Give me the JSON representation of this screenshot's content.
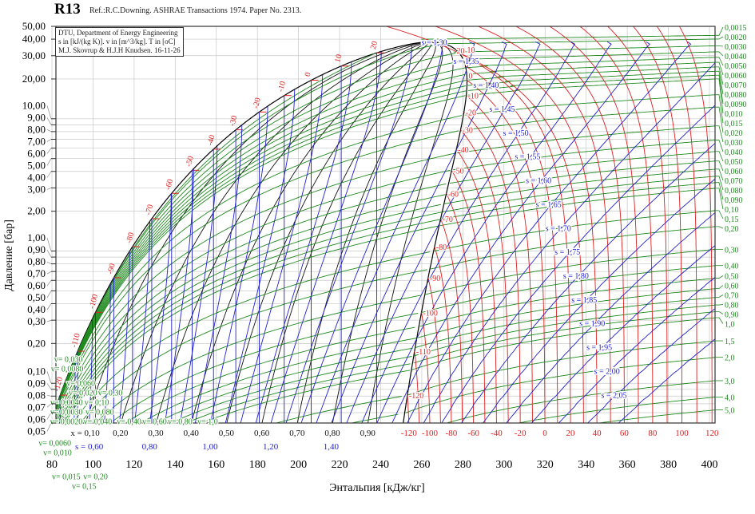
{
  "chart_data": {
    "type": "line",
    "title": "R13",
    "reference": "Ref.:R.C.Downing. ASHRAE Transactions 1974. Paper No. 2313.",
    "info_box": [
      "DTU, Department of Energy Engineering",
      "s in [kJ/(kg K)]. v in [m^3/kg]. T in [oC]",
      "M.J. Skovrup & H.J.H Knudsen. 16-11-26"
    ],
    "xlabel": "Энтальпия  [кДж/кг]",
    "ylabel": "Давление  [бар]",
    "xlim": [
      80,
      400
    ],
    "ylim": [
      0.05,
      50
    ],
    "yscale": "log",
    "grid": true,
    "critical_point": {
      "h": 263,
      "p": 38.4,
      "T": 28.9
    },
    "x_ticks": [
      {
        "value": 80,
        "label": "80"
      },
      {
        "value": 100,
        "label": "100"
      },
      {
        "value": 120,
        "label": "120"
      },
      {
        "value": 140,
        "label": "140"
      },
      {
        "value": 160,
        "label": "160"
      },
      {
        "value": 180,
        "label": "180"
      },
      {
        "value": 200,
        "label": "200"
      },
      {
        "value": 220,
        "label": "220"
      },
      {
        "value": 240,
        "label": "240"
      },
      {
        "value": 260,
        "label": "260"
      },
      {
        "value": 280,
        "label": "280"
      },
      {
        "value": 300,
        "label": "300"
      },
      {
        "value": 320,
        "label": "320"
      },
      {
        "value": 340,
        "label": "340"
      },
      {
        "value": 360,
        "label": "360"
      },
      {
        "value": 380,
        "label": "380"
      },
      {
        "value": 400,
        "label": "400"
      }
    ],
    "y_ticks": [
      {
        "value": 50,
        "label": "50,00"
      },
      {
        "value": 40,
        "label": "40,00"
      },
      {
        "value": 30,
        "label": "30,00"
      },
      {
        "value": 20,
        "label": "20,00"
      },
      {
        "value": 10,
        "label": "10,00"
      },
      {
        "value": 9,
        "label": "9,00"
      },
      {
        "value": 8,
        "label": "8,00"
      },
      {
        "value": 7,
        "label": "7,00"
      },
      {
        "value": 6,
        "label": "6,00"
      },
      {
        "value": 5,
        "label": "5,00"
      },
      {
        "value": 4,
        "label": "4,00"
      },
      {
        "value": 3,
        "label": "3,00"
      },
      {
        "value": 2,
        "label": "2,00"
      },
      {
        "value": 1,
        "label": "1,00"
      },
      {
        "value": 0.9,
        "label": "0,90"
      },
      {
        "value": 0.8,
        "label": "0,80"
      },
      {
        "value": 0.7,
        "label": "0,70"
      },
      {
        "value": 0.6,
        "label": "0,60"
      },
      {
        "value": 0.5,
        "label": "0,50"
      },
      {
        "value": 0.4,
        "label": "0,40"
      },
      {
        "value": 0.3,
        "label": "0,30"
      },
      {
        "value": 0.2,
        "label": "0,20"
      },
      {
        "value": 0.1,
        "label": "0,10"
      },
      {
        "value": 0.09,
        "label": "0,09"
      },
      {
        "value": 0.08,
        "label": "0,08"
      },
      {
        "value": 0.07,
        "label": "0,07"
      },
      {
        "value": 0.06,
        "label": "0,06"
      },
      {
        "value": 0.05,
        "label": "0,05"
      }
    ],
    "isotherms_T": [
      -120,
      -110,
      -100,
      -90,
      -80,
      -70,
      -60,
      -50,
      -40,
      -30,
      -20,
      -10,
      0,
      10,
      20,
      30,
      40,
      50,
      60,
      70,
      80,
      90,
      100,
      110,
      120
    ],
    "saturation_T_labels": [
      {
        "T": -120,
        "label": "-120"
      },
      {
        "T": -110,
        "label": "-110"
      },
      {
        "T": -100,
        "label": "-100"
      },
      {
        "T": -90,
        "label": "-90"
      },
      {
        "T": -80,
        "label": "-80"
      },
      {
        "T": -70,
        "label": "-70"
      },
      {
        "T": -60,
        "label": "-60"
      },
      {
        "T": -50,
        "label": "-50"
      },
      {
        "T": -40,
        "label": "-40"
      },
      {
        "T": -30,
        "label": "-30"
      },
      {
        "T": -20,
        "label": "-20"
      },
      {
        "T": -10,
        "label": "-10"
      },
      {
        "T": 0,
        "label": "0"
      },
      {
        "T": 10,
        "label": "10"
      },
      {
        "T": 20,
        "label": "20"
      }
    ],
    "bottom_T_labels": [
      {
        "T": -120,
        "label": "-120"
      },
      {
        "T": -100,
        "label": "-100"
      },
      {
        "T": -80,
        "label": "-80"
      },
      {
        "T": -60,
        "label": "-60"
      },
      {
        "T": -40,
        "label": "-40"
      },
      {
        "T": -20,
        "label": "-20"
      },
      {
        "T": 0,
        "label": "0"
      },
      {
        "T": 20,
        "label": "20"
      },
      {
        "T": 40,
        "label": "40"
      },
      {
        "T": 60,
        "label": "60"
      },
      {
        "T": 80,
        "label": "80"
      },
      {
        "T": 100,
        "label": "100"
      },
      {
        "T": 120,
        "label": "120"
      }
    ],
    "quality_lines": [
      {
        "x": 0.1,
        "label": "x = 0,10"
      },
      {
        "x": 0.2,
        "label": "0,20"
      },
      {
        "x": 0.3,
        "label": "0,30"
      },
      {
        "x": 0.4,
        "label": "0,40"
      },
      {
        "x": 0.5,
        "label": "0,50"
      },
      {
        "x": 0.6,
        "label": "0,60"
      },
      {
        "x": 0.7,
        "label": "0,70"
      },
      {
        "x": 0.8,
        "label": "0,80"
      },
      {
        "x": 0.9,
        "label": "0,90"
      }
    ],
    "isentropes_s": [
      0.55,
      0.6,
      0.65,
      0.7,
      0.75,
      0.8,
      0.85,
      0.9,
      0.95,
      1.0,
      1.05,
      1.1,
      1.15,
      1.2,
      1.25,
      1.3,
      1.35,
      1.4,
      1.45,
      1.5,
      1.55,
      1.6,
      1.65,
      1.7,
      1.75,
      1.8,
      1.85,
      1.9,
      1.95,
      2.0,
      2.05,
      2.1
    ],
    "isentrope_bottom_labels": [
      {
        "s": 0.6,
        "label": "s = 0,60"
      },
      {
        "s": 0.8,
        "label": "0,80"
      },
      {
        "s": 1.0,
        "label": "1,00"
      },
      {
        "s": 1.2,
        "label": "1,20"
      },
      {
        "s": 1.4,
        "label": "1,40"
      }
    ],
    "isentrope_vapor_labels": [
      {
        "s": 1.3,
        "label": "s = 1,30"
      },
      {
        "s": 1.35,
        "label": "s = 1,35"
      },
      {
        "s": 1.4,
        "label": "s = 1,40"
      },
      {
        "s": 1.45,
        "label": "s = 1,45"
      },
      {
        "s": 1.5,
        "label": "s = 1,50"
      },
      {
        "s": 1.55,
        "label": "s = 1,55"
      },
      {
        "s": 1.6,
        "label": "s = 1,60"
      },
      {
        "s": 1.65,
        "label": "s = 1,65"
      },
      {
        "s": 1.7,
        "label": "s = 1,70"
      },
      {
        "s": 1.75,
        "label": "s = 1,75"
      },
      {
        "s": 1.8,
        "label": "s = 1,80"
      },
      {
        "s": 1.85,
        "label": "s = 1,85"
      },
      {
        "s": 1.9,
        "label": "s = 1,90"
      },
      {
        "s": 1.95,
        "label": "s = 1,95"
      },
      {
        "s": 2.0,
        "label": "s = 2,00"
      },
      {
        "s": 2.05,
        "label": "s = 2,05"
      }
    ],
    "isochores": [
      {
        "v": 0.0015,
        "label": "0,0015"
      },
      {
        "v": 0.002,
        "label": "0,0020",
        "dome_label": "v= 0,0020"
      },
      {
        "v": 0.003,
        "label": "0,0030",
        "dome_label": "v= 0,0030"
      },
      {
        "v": 0.004,
        "label": "0,0040",
        "dome_label": "v= 0,0040"
      },
      {
        "v": 0.005,
        "label": "0,0050"
      },
      {
        "v": 0.006,
        "label": "0,0060",
        "dome_label": "v= 0,0060"
      },
      {
        "v": 0.007,
        "label": "0,0070"
      },
      {
        "v": 0.008,
        "label": "0,0080",
        "dome_label": "v= 0,0080"
      },
      {
        "v": 0.009,
        "label": "0,0090"
      },
      {
        "v": 0.01,
        "label": "0,010",
        "dome_label": "v= 0,010"
      },
      {
        "v": 0.015,
        "label": "0,015",
        "dome_label": "v= 0,015"
      },
      {
        "v": 0.02,
        "label": "0,020",
        "dome_label": "v= 0,020"
      },
      {
        "v": 0.03,
        "label": "0,030",
        "dome_label": "v= 0,030"
      },
      {
        "v": 0.04,
        "label": "0,040",
        "dome_label": "v= 0,040"
      },
      {
        "v": 0.05,
        "label": "0,050"
      },
      {
        "v": 0.06,
        "label": "0,060",
        "dome_label": "v= 0,060"
      },
      {
        "v": 0.07,
        "label": "0,070"
      },
      {
        "v": 0.08,
        "label": "0,080",
        "dome_label": "v= 0,080"
      },
      {
        "v": 0.09,
        "label": "0,090"
      },
      {
        "v": 0.1,
        "label": "0,10",
        "dome_label": "v= 0,10"
      },
      {
        "v": 0.15,
        "label": "0,15",
        "dome_label": "v= 0,15"
      },
      {
        "v": 0.2,
        "label": "0,20",
        "dome_label": "v= 0,20"
      },
      {
        "v": 0.3,
        "label": "0,30",
        "dome_label": "v= 0,30"
      },
      {
        "v": 0.4,
        "label": "0,40",
        "dome_label": "v= 0,40"
      },
      {
        "v": 0.5,
        "label": "0,50"
      },
      {
        "v": 0.6,
        "label": "0,60",
        "dome_label": "v= 0,60"
      },
      {
        "v": 0.7,
        "label": "0,70"
      },
      {
        "v": 0.8,
        "label": "0,80",
        "dome_label": "v= 0,80"
      },
      {
        "v": 0.9,
        "label": "0,90"
      },
      {
        "v": 1.0,
        "label": "1,0",
        "dome_label": "v= 1,0"
      },
      {
        "v": 1.5,
        "label": "1,5"
      },
      {
        "v": 2.0,
        "label": "2,0"
      },
      {
        "v": 3.0,
        "label": "3,0"
      },
      {
        "v": 4.0,
        "label": "4,0"
      },
      {
        "v": 5.0,
        "label": "5,0"
      }
    ],
    "colors": {
      "isotherm": "#e02020",
      "isentrope": "#2020d0",
      "isochore": "#1e8a1e",
      "quality": "#111111",
      "grid": "#c8c8c8"
    }
  }
}
